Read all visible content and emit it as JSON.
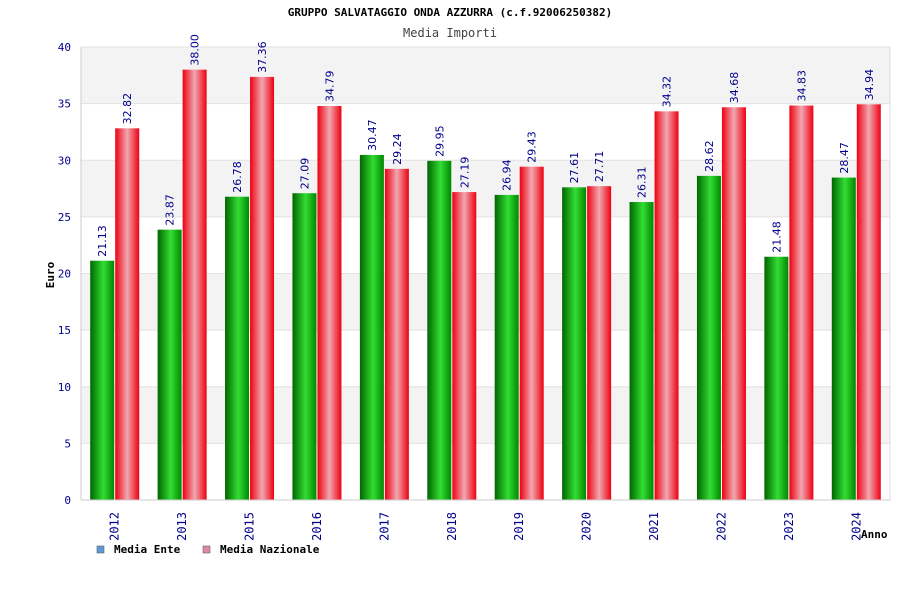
{
  "chart_data": {
    "type": "bar",
    "title": "GRUPPO SALVATAGGIO ONDA AZZURRA (c.f.92006250382)",
    "subtitle": "Media Importi",
    "xlabel": "Anno",
    "ylabel": "Euro",
    "ylim": [
      0,
      40
    ],
    "yticks": [
      0,
      5,
      10,
      15,
      20,
      25,
      30,
      35,
      40
    ],
    "grid": true,
    "legend_position": "bottom-left",
    "categories": [
      "2012",
      "2013",
      "2015",
      "2016",
      "2017",
      "2018",
      "2019",
      "2020",
      "2021",
      "2022",
      "2023",
      "2024"
    ],
    "series": [
      {
        "name": "Media Ente",
        "color": "#00aa00",
        "legend_color": "#5b9bd5",
        "values": [
          21.13,
          23.87,
          26.78,
          27.09,
          30.47,
          29.95,
          26.94,
          27.61,
          26.31,
          28.62,
          21.48,
          28.47
        ],
        "labels": [
          "21.13",
          "23.87",
          "26.78",
          "27.09",
          "30.47",
          "29.95",
          "26.94",
          "27.61",
          "26.31",
          "28.62",
          "21.48",
          "28.47"
        ]
      },
      {
        "name": "Media Nazionale",
        "color": "#ee1111",
        "legend_color": "#dd88aa",
        "values": [
          32.82,
          38.0,
          37.36,
          34.79,
          29.24,
          27.19,
          29.43,
          27.71,
          34.32,
          34.68,
          34.83,
          34.94
        ],
        "labels": [
          "32.82",
          "38.00",
          "37.36",
          "34.79",
          "29.24",
          "27.19",
          "29.43",
          "27.71",
          "34.32",
          "34.68",
          "34.83",
          "34.94"
        ]
      }
    ]
  }
}
